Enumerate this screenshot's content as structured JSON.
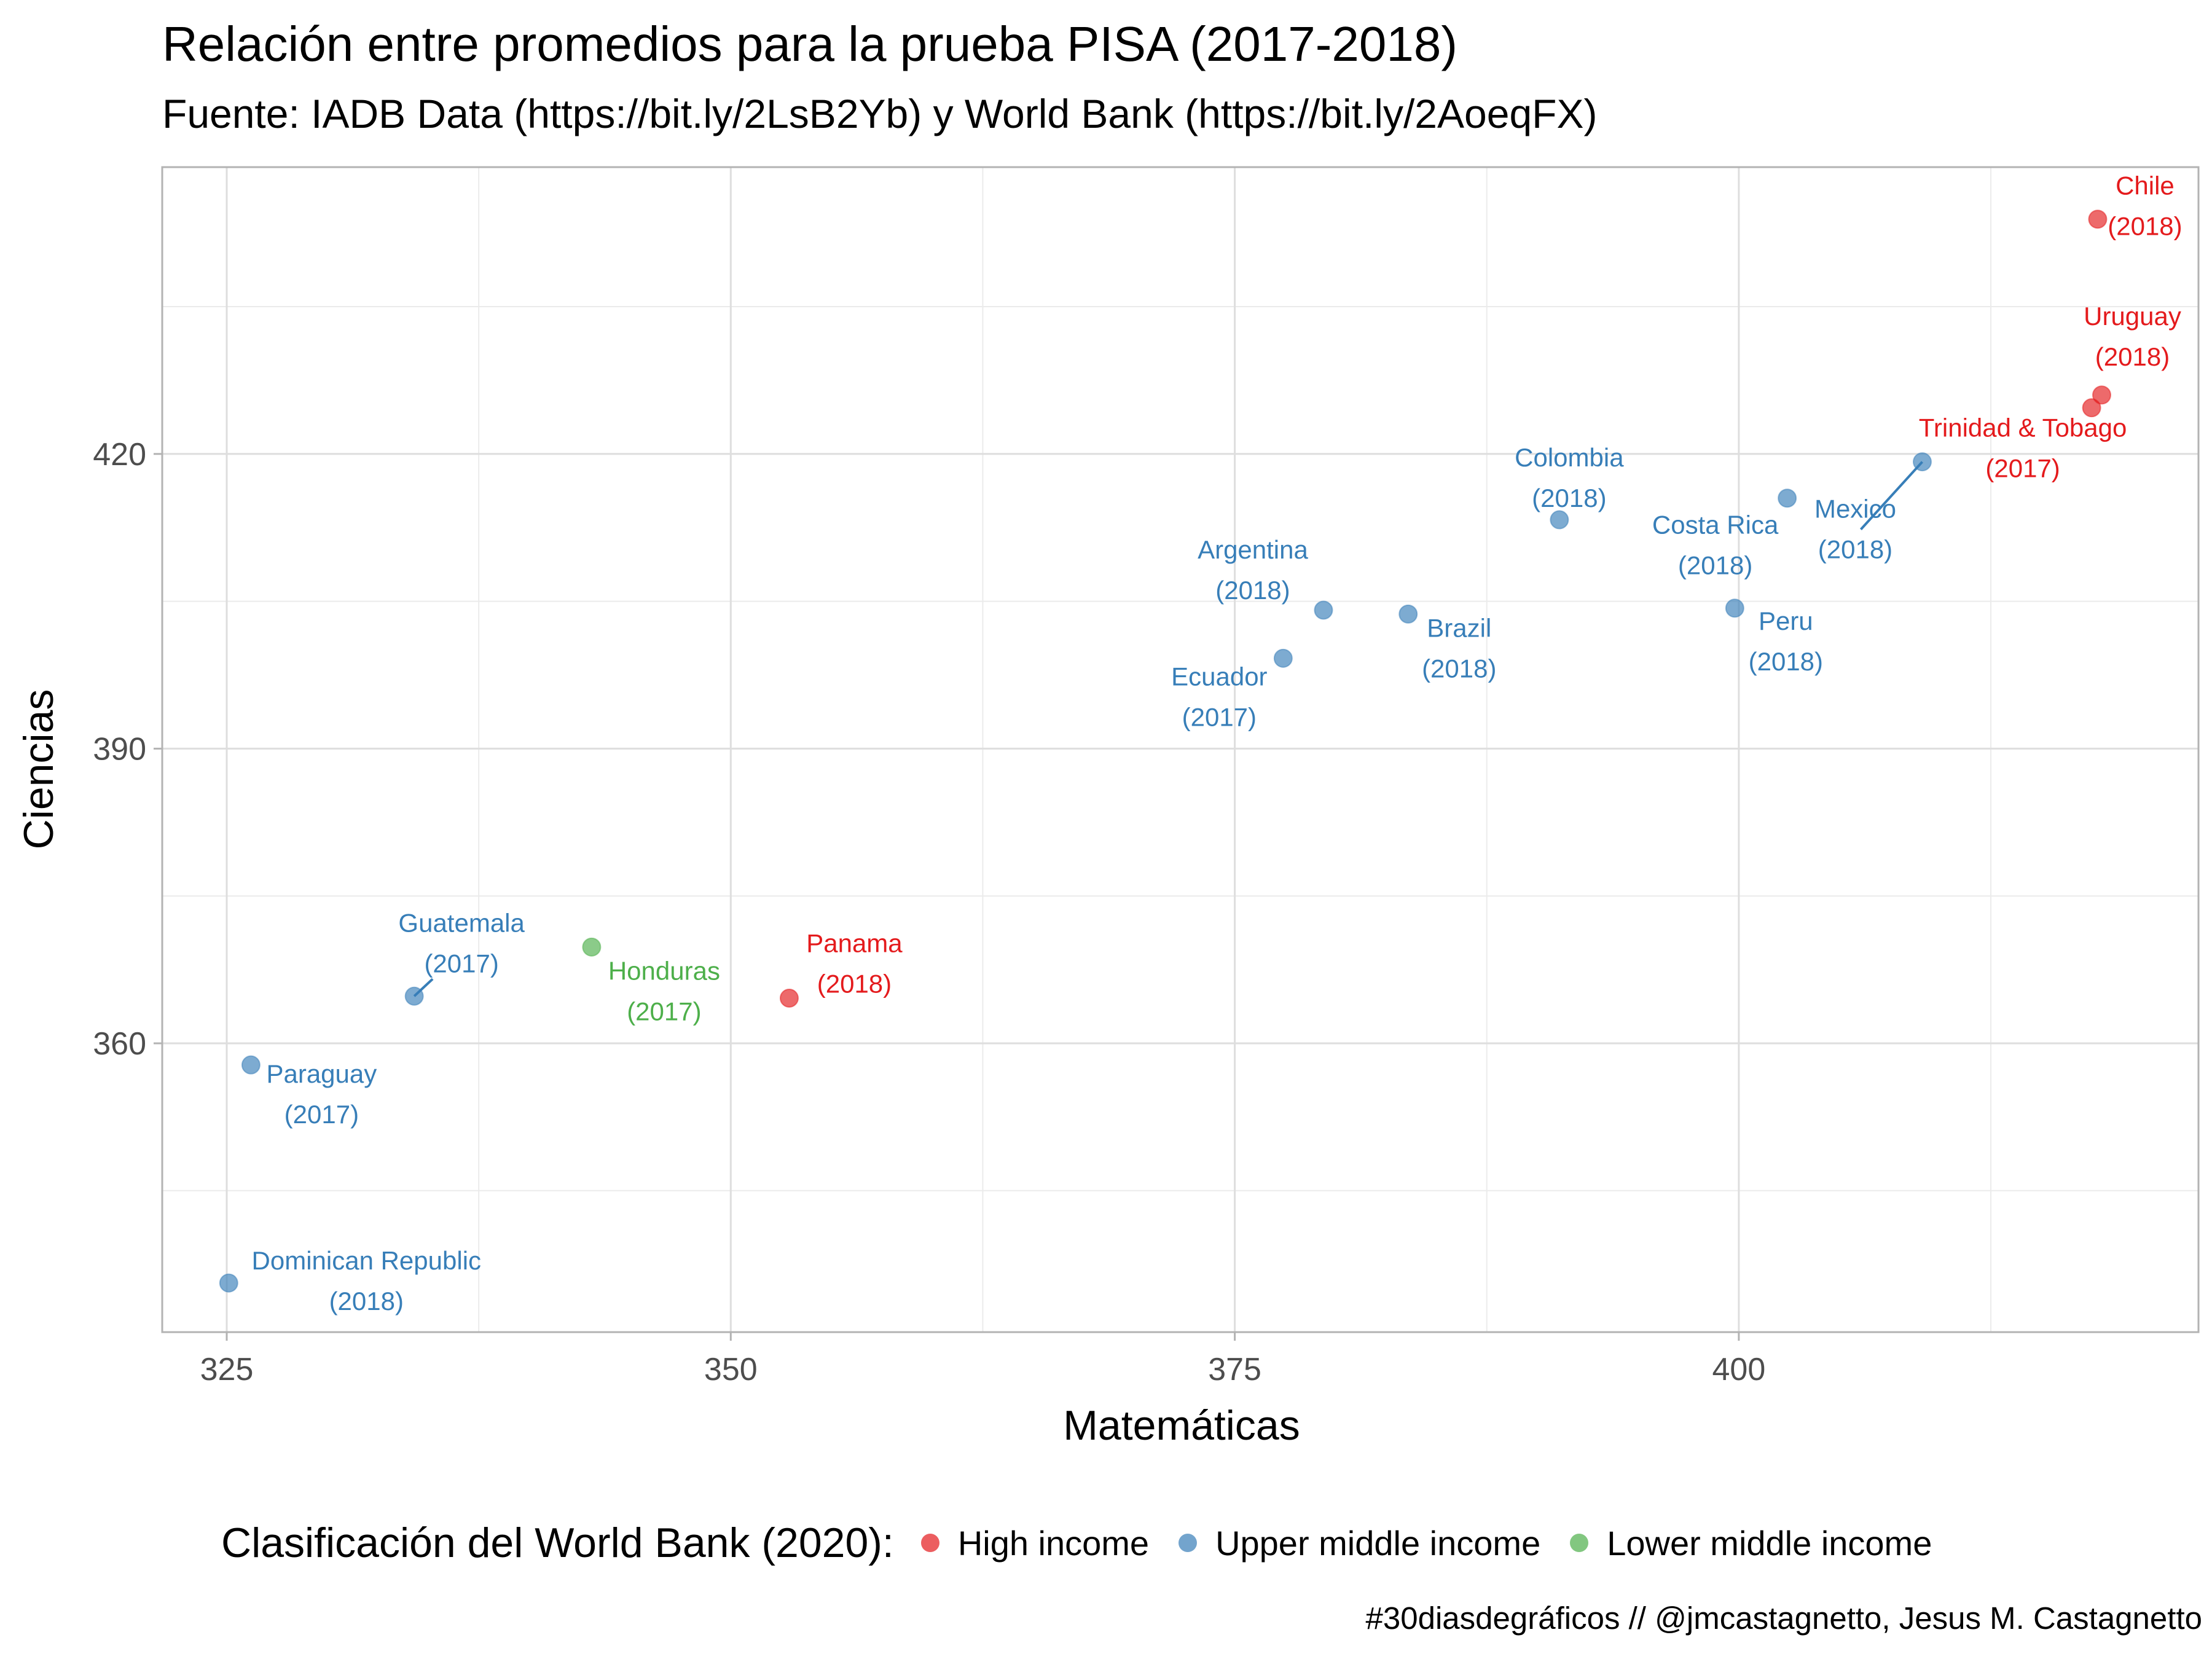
{
  "title": "Relación entre promedios para la prueba PISA (2017-2018)",
  "subtitle": "Fuente: IADB Data (https://bit.ly/2LsB2Yb) y World Bank (https://bit.ly/2AoeqFX)",
  "caption": "#30diasdegráficos // @jmcastagnetto, Jesus M. Castagnetto",
  "legend": {
    "title": "Clasificación del World Bank (2020):",
    "items": [
      {
        "label": "High income",
        "color": "#e41a1c"
      },
      {
        "label": "Upper middle income",
        "color": "#377eb8"
      },
      {
        "label": "Lower middle income",
        "color": "#4daf4a"
      }
    ]
  },
  "chart_data": {
    "type": "scatter",
    "xlabel": "Matemáticas",
    "ylabel": "Ciencias",
    "xlim": [
      321.8,
      422.8
    ],
    "ylim": [
      330.6,
      449.2
    ],
    "x_ticks": [
      325,
      350,
      375,
      400
    ],
    "y_ticks": [
      360,
      390,
      420
    ],
    "x_minor": [
      337.5,
      362.5,
      387.5,
      412.5
    ],
    "y_minor": [
      345,
      375,
      405,
      435
    ],
    "grid": true,
    "legend_position": "bottom",
    "colors": {
      "High income": "#e41a1c",
      "Upper middle income": "#377eb8",
      "Lower middle income": "#4daf4a"
    },
    "points": [
      {
        "country": "Chile",
        "year": "(2018)",
        "group": "High income",
        "x": 417.8,
        "y": 443.9
      },
      {
        "country": "Uruguay",
        "year": "(2018)",
        "group": "High income",
        "x": 418.0,
        "y": 426.0
      },
      {
        "country": "Trinidad & Tobago",
        "year": "(2017)",
        "group": "High income",
        "x": 417.5,
        "y": 424.7
      },
      {
        "country": "Mexico",
        "year": "(2018)",
        "group": "Upper middle income",
        "x": 409.1,
        "y": 419.2
      },
      {
        "country": "Costa Rica",
        "year": "(2018)",
        "group": "Upper middle income",
        "x": 402.4,
        "y": 415.5
      },
      {
        "country": "Colombia",
        "year": "(2018)",
        "group": "Upper middle income",
        "x": 391.1,
        "y": 413.3
      },
      {
        "country": "Peru",
        "year": "(2018)",
        "group": "Upper middle income",
        "x": 399.8,
        "y": 404.3
      },
      {
        "country": "Argentina",
        "year": "(2018)",
        "group": "Upper middle income",
        "x": 379.4,
        "y": 404.1
      },
      {
        "country": "Brazil",
        "year": "(2018)",
        "group": "Upper middle income",
        "x": 383.6,
        "y": 403.7
      },
      {
        "country": "Ecuador",
        "year": "(2017)",
        "group": "Upper middle income",
        "x": 377.4,
        "y": 399.2
      },
      {
        "country": "Honduras",
        "year": "(2017)",
        "group": "Lower middle income",
        "x": 343.1,
        "y": 369.8
      },
      {
        "country": "Panama",
        "year": "(2018)",
        "group": "High income",
        "x": 352.9,
        "y": 364.6
      },
      {
        "country": "Guatemala",
        "year": "(2017)",
        "group": "Upper middle income",
        "x": 334.3,
        "y": 364.8
      },
      {
        "country": "Paraguay",
        "year": "(2017)",
        "group": "Upper middle income",
        "x": 326.2,
        "y": 357.8
      },
      {
        "country": "Dominican Republic",
        "year": "(2018)",
        "group": "Upper middle income",
        "x": 325.1,
        "y": 335.6
      }
    ]
  }
}
